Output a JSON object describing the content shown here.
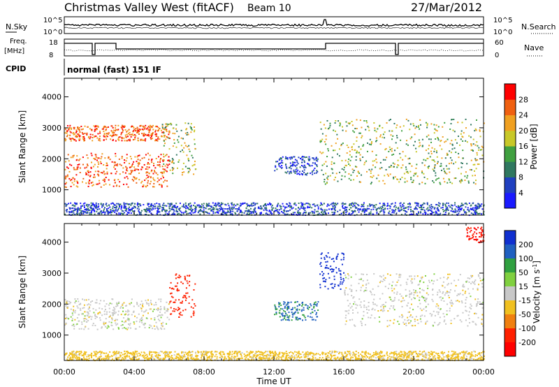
{
  "header": {
    "title": "Christmas Valley West (fitACF)",
    "beam": "Beam 10",
    "date": "27/Mar/2012"
  },
  "status_panels": {
    "nsky_label": "N.Sky",
    "nsearch_label": "N.Search",
    "nsky_ticks": [
      "10^5",
      "10^0"
    ],
    "nsearch_ticks": [
      "10^5",
      "10^0"
    ],
    "freq_label_1": "Freq.",
    "freq_label_2": "[MHz]",
    "freq_ticks": [
      "18",
      "8"
    ],
    "nave_label": "Nave",
    "nave_ticks": [
      "60",
      "0"
    ],
    "cpid_label": "CPID",
    "cpid_value": "normal (fast) 151 IF"
  },
  "chart_data": [
    {
      "type": "heatmap",
      "panel": "power",
      "ylabel": "Slant Range [km]",
      "ylim": [
        180,
        4600
      ],
      "yticks": [
        "1000",
        "2000",
        "3000",
        "4000"
      ],
      "colorbar_label": "Power [dB]",
      "colorbar_ticks": [
        "4",
        "8",
        "12",
        "16",
        "20",
        "24",
        "28"
      ],
      "colorscale": [
        "#1a1aff",
        "#2040c0",
        "#307860",
        "#40a040",
        "#c8c828",
        "#f0a020",
        "#f06010",
        "#ff0000"
      ],
      "echo_regions": [
        {
          "t_start": 0.0,
          "t_end": 6.0,
          "r_min": 1100,
          "r_max": 2200,
          "level": "high"
        },
        {
          "t_start": 0.0,
          "t_end": 6.0,
          "r_min": 2600,
          "r_max": 3100,
          "level": "high"
        },
        {
          "t_start": 5.5,
          "t_end": 7.5,
          "r_min": 1500,
          "r_max": 3200,
          "level": "medium"
        },
        {
          "t_start": 12.0,
          "t_end": 14.5,
          "r_min": 1500,
          "r_max": 2100,
          "level": "low"
        },
        {
          "t_start": 14.6,
          "t_end": 24.0,
          "r_min": 1200,
          "r_max": 3300,
          "level": "medium"
        },
        {
          "t_start": 0.0,
          "t_end": 24.0,
          "r_min": 200,
          "r_max": 600,
          "level": "low"
        }
      ]
    },
    {
      "type": "heatmap",
      "panel": "velocity",
      "ylabel": "Slant Range [km]",
      "ylim": [
        180,
        4600
      ],
      "yticks": [
        "1000",
        "2000",
        "3000",
        "4000"
      ],
      "xlabel": "Time UT",
      "xticks": [
        "00:00",
        "04:00",
        "08:00",
        "12:00",
        "16:00",
        "20:00",
        "00:00"
      ],
      "colorbar_ticks": [
        "200",
        "100",
        "50",
        "15",
        "-15",
        "-50",
        "-100",
        "-200"
      ],
      "colorscale": [
        "#1030d0",
        "#2060c0",
        "#30a040",
        "#80d040",
        "#c8c8c8",
        "#f0c020",
        "#f08010",
        "#ff2000",
        "#ff0000"
      ],
      "echo_regions": [
        {
          "t_start": 0.0,
          "t_end": 6.0,
          "r_min": 1200,
          "r_max": 2200,
          "velocity": 0
        },
        {
          "t_start": 6.0,
          "t_end": 7.5,
          "r_min": 1600,
          "r_max": 3000,
          "velocity": -150
        },
        {
          "t_start": 12.0,
          "t_end": 14.5,
          "r_min": 1500,
          "r_max": 2100,
          "velocity": 80
        },
        {
          "t_start": 14.6,
          "t_end": 16.0,
          "r_min": 2500,
          "r_max": 3700,
          "velocity": 200
        },
        {
          "t_start": 16.0,
          "t_end": 24.0,
          "r_min": 1300,
          "r_max": 3000,
          "velocity": 0
        },
        {
          "t_start": 23.0,
          "t_end": 24.0,
          "r_min": 4000,
          "r_max": 4500,
          "velocity": -200
        },
        {
          "t_start": 0.0,
          "t_end": 24.0,
          "r_min": 200,
          "r_max": 500,
          "velocity": -30
        }
      ]
    }
  ],
  "colors": {
    "frame": "#000000",
    "background": "#ffffff"
  }
}
